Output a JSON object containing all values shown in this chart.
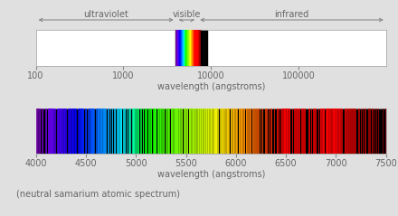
{
  "title_bottom": "(neutral samarium atomic spectrum)",
  "fig_bg": "#e0e0e0",
  "panel1": {
    "xmin": 100,
    "xmax": 1000000,
    "xticks": [
      100,
      1000,
      10000,
      100000
    ],
    "xticklabels": [
      "100",
      "1000",
      "10000",
      "100000"
    ],
    "xlabel": "wavelength (angstroms)",
    "bg": "white",
    "spectrum_span": [
      3900,
      9000
    ]
  },
  "panel2": {
    "xmin": 4000,
    "xmax": 7500,
    "xticks": [
      4000,
      4500,
      5000,
      5500,
      6000,
      6500,
      7000,
      7500
    ],
    "xlabel": "wavelength (angstroms)",
    "bg": "black"
  },
  "arrow_color": "#888888",
  "label_color": "#666666",
  "tick_color": "#888888",
  "spine_color": "#aaaaaa",
  "font_size": 7,
  "caption_size": 7,
  "sm_lines": [
    3609.49,
    3621.23,
    3634.29,
    3661.36,
    3670.84,
    3693.99,
    3728.47,
    3760.69,
    3764.37,
    3797.73,
    3826.2,
    3831.5,
    3885.29,
    3889.32,
    3896.97,
    3910.05,
    3930.28,
    3943.61,
    3965.79,
    3973.66,
    3991.28,
    4006.73,
    4009.56,
    4010.79,
    4020.87,
    4030.07,
    4036.06,
    4038.3,
    4043.12,
    4053.34,
    4063.7,
    4064.57,
    4095.77,
    4100.62,
    4107.38,
    4118.55,
    4120.2,
    4122.58,
    4123.23,
    4123.8,
    4127.1,
    4131.0,
    4136.09,
    4142.67,
    4150.52,
    4152.21,
    4154.13,
    4155.21,
    4160.73,
    4166.59,
    4167.0,
    4174.36,
    4188.13,
    4193.63,
    4215.89,
    4218.21,
    4219.73,
    4225.33,
    4236.74,
    4242.76,
    4246.09,
    4256.39,
    4259.17,
    4268.04,
    4270.88,
    4280.79,
    4282.83,
    4296.74,
    4303.0,
    4318.94,
    4329.02,
    4334.15,
    4336.14,
    4347.8,
    4354.94,
    4361.79,
    4362.04,
    4367.99,
    4374.94,
    4380.42,
    4390.86,
    4393.35,
    4403.69,
    4420.53,
    4424.34,
    4433.88,
    4434.32,
    4436.97,
    4441.28,
    4449.44,
    4454.27,
    4454.63,
    4458.53,
    4462.36,
    4467.34,
    4470.89,
    4473.69,
    4487.38,
    4499.48,
    4502.22,
    4519.63,
    4523.92,
    4536.36,
    4542.61,
    4549.89,
    4553.36,
    4559.29,
    4562.11,
    4565.07,
    4566.2,
    4571.17,
    4576.26,
    4581.73,
    4596.07,
    4604.93,
    4614.84,
    4617.01,
    4620.56,
    4624.91,
    4626.83,
    4629.2,
    4633.16,
    4642.23,
    4648.41,
    4652.52,
    4658.02,
    4661.29,
    4670.75,
    4676.9,
    4677.31,
    4681.11,
    4688.42,
    4692.84,
    4696.52,
    4716.1,
    4728.42,
    4731.13,
    4748.27,
    4760.27,
    4764.59,
    4783.1,
    4788.03,
    4791.01,
    4811.87,
    4818.87,
    4820.8,
    4827.87,
    4831.77,
    4841.7,
    4847.89,
    4850.87,
    4854.36,
    4856.03,
    4869.28,
    4883.77,
    4892.95,
    4909.95,
    4925.06,
    4932.25,
    4944.13,
    4960.88,
    4969.93,
    4972.34,
    4973.12,
    4979.84,
    4980.98,
    4991.84,
    5000.99,
    5009.64,
    5014.98,
    5021.33,
    5029.37,
    5044.28,
    5052.54,
    5069.27,
    5071.2,
    5087.19,
    5094.7,
    5100.44,
    5106.42,
    5122.37,
    5124.96,
    5131.37,
    5142.08,
    5147.33,
    5152.6,
    5173.36,
    5175.39,
    5180.36,
    5183.98,
    5188.26,
    5192.79,
    5197.6,
    5200.9,
    5213.43,
    5222.5,
    5228.17,
    5236.73,
    5238.69,
    5245.99,
    5251.39,
    5257.49,
    5271.3,
    5276.37,
    5282.56,
    5293.75,
    5303.14,
    5316.36,
    5322.47,
    5325.98,
    5334.35,
    5346.06,
    5348.23,
    5355.19,
    5362.07,
    5370.41,
    5378.91,
    5382.26,
    5385.98,
    5390.29,
    5394.93,
    5396.64,
    5401.28,
    5404.3,
    5407.42,
    5409.98,
    5416.46,
    5421.89,
    5427.85,
    5431.53,
    5442.67,
    5451.57,
    5458.93,
    5462.56,
    5474.08,
    5482.39,
    5489.68,
    5492.49,
    5503.22,
    5511.97,
    5515.95,
    5527.47,
    5531.03,
    5537.33,
    5540.62,
    5549.5,
    5556.13,
    5562.93,
    5567.07,
    5569.96,
    5574.15,
    5585.58,
    5589.36,
    5596.42,
    5606.55,
    5615.77,
    5621.26,
    5624.4,
    5634.64,
    5636.95,
    5639.57,
    5645.96,
    5654.68,
    5660.93,
    5669.92,
    5673.67,
    5681.02,
    5688.54,
    5693.94,
    5699.94,
    5706.2,
    5708.75,
    5717.07,
    5720.37,
    5733.19,
    5736.23,
    5748.91,
    5752.62,
    5756.16,
    5764.94,
    5773.78,
    5780.94,
    5788.31,
    5791.72,
    5795.68,
    5799.93,
    5802.23,
    5809.21,
    5822.85,
    5835.77,
    5845.57,
    5853.26,
    5857.45,
    5860.89,
    5868.12,
    5872.71,
    5876.99,
    5879.54,
    5894.16,
    5900.85,
    5906.97,
    5909.07,
    5918.38,
    5924.32,
    5932.66,
    5944.67,
    5949.44,
    5955.24,
    5967.91,
    5971.65,
    5975.14,
    5978.42,
    5987.7,
    5992.53,
    6000.72,
    6004.58,
    6010.82,
    6025.75,
    6027.57,
    6034.1,
    6045.63,
    6050.23,
    6054.14,
    6059.78,
    6066.45,
    6074.46,
    6083.83,
    6086.25,
    6098.59,
    6104.19,
    6109.47,
    6118.54,
    6127.61,
    6138.27,
    6145.78,
    6149.45,
    6164.89,
    6167.95,
    6172.15,
    6184.47,
    6188.11,
    6197.95,
    6206.83,
    6218.82,
    6225.04,
    6243.22,
    6259.97,
    6267.49,
    6288.86,
    6297.07,
    6308.68,
    6327.78,
    6342.04,
    6356.77,
    6383.33,
    6407.83,
    6416.71,
    6421.51,
    6433.1,
    6452.29,
    6455.25,
    6463.63,
    6471.1,
    6479.9,
    6483.91,
    6485.79,
    6487.0,
    6497.04,
    6503.4,
    6508.48,
    6511.7,
    6520.95,
    6527.87,
    6534.88,
    6536.88,
    6562.07,
    6576.37,
    6589.98,
    6593.62,
    6604.95,
    6618.4,
    6628.49,
    6634.68,
    6649.66,
    6659.95,
    6670.28,
    6680.2,
    6689.71,
    6720.37,
    6730.48,
    6752.47,
    6767.44,
    6781.97,
    6791.74,
    6799.19,
    6825.15,
    6841.44,
    6845.11,
    6854.97,
    6862.63,
    6864.55,
    6871.28,
    6878.41,
    6880.97,
    6895.93,
    6903.91,
    6906.82,
    6910.33,
    6913.66,
    6917.3,
    6924.15,
    6930.75,
    6934.13,
    6942.63,
    6947.44,
    6955.36,
    6964.92,
    6968.51,
    6976.42,
    6979.99,
    6984.11,
    6987.14,
    6996.06,
    7003.34,
    7008.11,
    7012.26,
    7022.24,
    7030.87,
    7035.18,
    7041.67,
    7051.52,
    7061.72,
    7082.37,
    7089.75,
    7097.04,
    7108.2,
    7115.45,
    7120.49,
    7128.64,
    7136.92,
    7149.24,
    7154.23,
    7169.11,
    7174.09,
    7182.43,
    7198.26,
    7224.38,
    7234.64,
    7248.88,
    7263.86,
    7282.11,
    7295.88,
    7319.54,
    7332.68,
    7342.26,
    7353.45,
    7370.09,
    7383.39,
    7406.88,
    7424.48,
    7466.14,
    7491.07
  ]
}
